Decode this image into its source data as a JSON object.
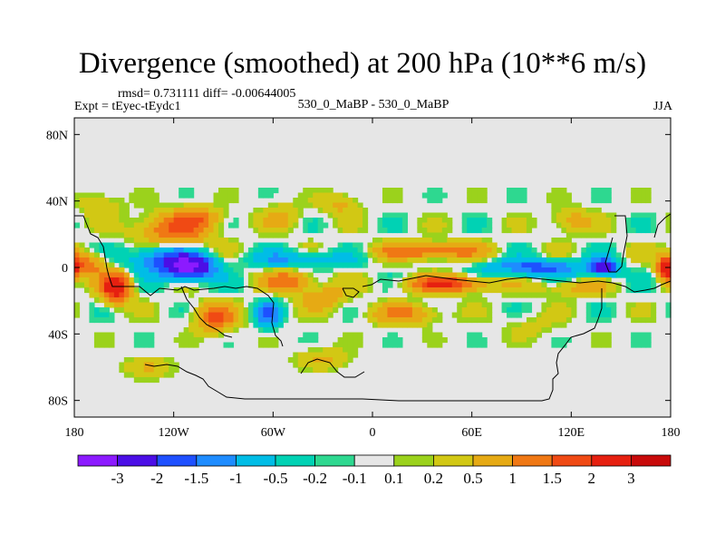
{
  "title": "Divergence (smoothed) at 200 hPa (10**6 m/s)",
  "stats": "rmsd= 0.731111 diff= -0.00644005",
  "left_label": "Expt = tEyec-tEydc1",
  "center_label": "530_0_MaBP - 530_0_MaBP",
  "right_label": "JJA",
  "chart_data": {
    "type": "heatmap",
    "variable": "Divergence (smoothed) at 200 hPa",
    "units": "10**6 m/s",
    "season": "JJA",
    "rmsd": 0.731111,
    "diff": -0.00644005,
    "x_range": [
      -180,
      180
    ],
    "y_range": [
      -90,
      90
    ],
    "x_ticks": [
      -180,
      -120,
      -60,
      0,
      60,
      120,
      180
    ],
    "x_tick_labels": [
      "180",
      "120W",
      "60W",
      "0",
      "60E",
      "120E",
      "180"
    ],
    "y_ticks": [
      80,
      40,
      0,
      -40,
      -80
    ],
    "y_tick_labels": [
      "80N",
      "40N",
      "0",
      "40S",
      "80S"
    ],
    "levels": [
      -3,
      -2,
      -1.5,
      -1,
      -0.5,
      -0.2,
      -0.1,
      0.1,
      0.2,
      0.5,
      1,
      1.5,
      2,
      3
    ],
    "level_labels": [
      "-3",
      "-2",
      "-1.5",
      "-1",
      "-0.5",
      "-0.2",
      "-0.1",
      "0.1",
      "0.2",
      "0.5",
      "1",
      "1.5",
      "2",
      "3"
    ],
    "colors": [
      "#8c1aff",
      "#4b0ee6",
      "#1e50ff",
      "#1e8cff",
      "#00bde6",
      "#00d2b4",
      "#2ed890",
      "#e6e6e6",
      "#9bd21c",
      "#d2c814",
      "#e6aa14",
      "#f07814",
      "#f04a14",
      "#e62010",
      "#c80a0a"
    ],
    "features": [
      {
        "lon": -110,
        "lat": 0,
        "value": -3.1,
        "slon": 14,
        "slat": 7
      },
      {
        "lon": -128,
        "lat": 5,
        "value": -1.6,
        "slon": 20,
        "slat": 9
      },
      {
        "lon": -155,
        "lat": -12,
        "value": 2.6,
        "slon": 9,
        "slat": 9
      },
      {
        "lon": -170,
        "lat": 2,
        "value": 1.2,
        "slon": 9,
        "slat": 7
      },
      {
        "lon": -95,
        "lat": -30,
        "value": 1.6,
        "slon": 12,
        "slat": 8
      },
      {
        "lon": -120,
        "lat": 22,
        "value": 1.5,
        "slon": 22,
        "slat": 10
      },
      {
        "lon": -105,
        "lat": 30,
        "value": 0.9,
        "slon": 14,
        "slat": 6
      },
      {
        "lon": -165,
        "lat": 38,
        "value": 0.5,
        "slon": 12,
        "slat": 7
      },
      {
        "lon": -63,
        "lat": -28,
        "value": -1.7,
        "slon": 7,
        "slat": 7
      },
      {
        "lon": -45,
        "lat": 5,
        "value": -1.0,
        "slon": 30,
        "slat": 5
      },
      {
        "lon": -50,
        "lat": -8,
        "value": 1.4,
        "slon": 14,
        "slat": 6
      },
      {
        "lon": -30,
        "lat": -18,
        "value": 0.9,
        "slon": 14,
        "slat": 7
      },
      {
        "lon": -55,
        "lat": 30,
        "value": 0.6,
        "slon": 12,
        "slat": 8
      },
      {
        "lon": 35,
        "lat": 10,
        "value": 1.6,
        "slon": 30,
        "slat": 5
      },
      {
        "lon": 45,
        "lat": -10,
        "value": 2.0,
        "slon": 25,
        "slat": 5
      },
      {
        "lon": 20,
        "lat": -28,
        "value": 1.1,
        "slon": 20,
        "slat": 6
      },
      {
        "lon": 100,
        "lat": 0,
        "value": -1.7,
        "slon": 30,
        "slat": 5
      },
      {
        "lon": 140,
        "lat": 0,
        "value": -2.6,
        "slon": 8,
        "slat": 5
      },
      {
        "lon": 178,
        "lat": 0,
        "value": 2.5,
        "slon": 6,
        "slat": 8
      },
      {
        "lon": 120,
        "lat": 28,
        "value": 0.8,
        "slon": 12,
        "slat": 7
      },
      {
        "lon": 120,
        "lat": -12,
        "value": 0.7,
        "slon": 20,
        "slat": 5
      },
      {
        "lon": 95,
        "lat": -35,
        "value": 0.3,
        "slon": 15,
        "slat": 8
      },
      {
        "lon": -20,
        "lat": 38,
        "value": 0.6,
        "slon": 12,
        "slat": 7
      },
      {
        "lon": -30,
        "lat": -55,
        "value": 0.6,
        "slon": 15,
        "slat": 6
      },
      {
        "lon": -135,
        "lat": -60,
        "value": 0.5,
        "slon": 15,
        "slat": 6
      }
    ]
  }
}
